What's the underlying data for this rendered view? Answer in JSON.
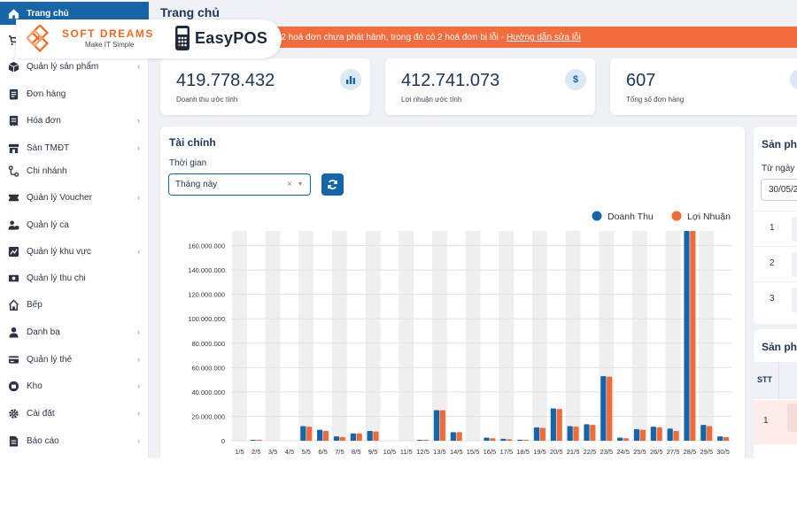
{
  "brand": {
    "softdreams_name": "SOFT DREAMS",
    "softdreams_tagline": "Make IT Simple",
    "easypos_name": "EasyPOS"
  },
  "sidebar": {
    "items": [
      {
        "label": "Trang chủ",
        "icon": "home-icon",
        "active": true,
        "chevron": false
      },
      {
        "label": "",
        "icon": "cart-icon",
        "active": false,
        "chevron": false
      },
      {
        "label": "Quản lý sản phẩm",
        "icon": "box-icon",
        "active": false,
        "chevron": true
      },
      {
        "label": "Đơn hàng",
        "icon": "order-icon",
        "active": false,
        "chevron": false
      },
      {
        "label": "Hóa đơn",
        "icon": "invoice-icon",
        "active": false,
        "chevron": true
      },
      {
        "label": "Sàn TMĐT",
        "icon": "store-icon",
        "active": false,
        "chevron": true
      },
      {
        "label": "Chi nhánh",
        "icon": "branch-icon",
        "active": false,
        "chevron": false
      },
      {
        "label": "Quản lý Voucher",
        "icon": "voucher-icon",
        "active": false,
        "chevron": true
      },
      {
        "label": "Quản lý ca",
        "icon": "shift-icon",
        "active": false,
        "chevron": false
      },
      {
        "label": "Quản lý khu vực",
        "icon": "area-icon",
        "active": false,
        "chevron": true
      },
      {
        "label": "Quản lý thu chi",
        "icon": "cash-icon",
        "active": false,
        "chevron": false
      },
      {
        "label": "Bếp",
        "icon": "kitchen-icon",
        "active": false,
        "chevron": false
      },
      {
        "label": "Danh bạ",
        "icon": "contacts-icon",
        "active": false,
        "chevron": true
      },
      {
        "label": "Quản lý thẻ",
        "icon": "card-icon",
        "active": false,
        "chevron": true
      },
      {
        "label": "Kho",
        "icon": "warehouse-icon",
        "active": false,
        "chevron": true
      },
      {
        "label": "Cài đặt",
        "icon": "gear-icon",
        "active": false,
        "chevron": true
      },
      {
        "label": "Báo cáo",
        "icon": "report-icon",
        "active": false,
        "chevron": true
      }
    ]
  },
  "header": {
    "title": "Trang chủ",
    "alert_text": "g 2 hoá đơn chưa phát hành, trong đó có 2 hoá đơn bị lỗi -",
    "alert_link": "Hướng dẫn sửa lỗi"
  },
  "stats": [
    {
      "value": "419.778.432",
      "label": "Doanh thu ước tính",
      "icon": "chart-icon"
    },
    {
      "value": "412.741.073",
      "label": "Lợi nhuận ước tính",
      "icon": "dollar-icon"
    },
    {
      "value": "607",
      "label": "Tổng số đơn hàng",
      "icon": "orders-count-icon"
    }
  ],
  "finance": {
    "title": "Tài chính",
    "time_label": "Thời gian",
    "time_value": "Tháng này",
    "clear_symbol": "×",
    "caret_symbol": "▾"
  },
  "right_panel": {
    "top_title": "Sản pha",
    "date_label": "Từ ngày",
    "date_value": "30/05/2",
    "rows": [
      "1",
      "2",
      "3"
    ],
    "bottom_title": "Sản pha",
    "table_header": "STT",
    "table_first_row": "1"
  },
  "colors": {
    "primary": "#1565a8",
    "accent": "#f26c3d",
    "series_revenue": "#1565a8",
    "series_profit": "#f06a3a"
  },
  "chart_data": {
    "type": "bar",
    "categories": [
      "1/5",
      "2/5",
      "3/5",
      "4/5",
      "5/5",
      "6/5",
      "7/5",
      "8/5",
      "9/5",
      "10/5",
      "11/5",
      "12/5",
      "13/5",
      "14/5",
      "15/5",
      "16/5",
      "17/5",
      "18/5",
      "19/5",
      "20/5",
      "21/5",
      "22/5",
      "23/5",
      "24/5",
      "25/5",
      "26/5",
      "27/5",
      "28/5",
      "29/5",
      "30/5"
    ],
    "series": [
      {
        "name": "Doanh Thu",
        "values": [
          0,
          500000,
          0,
          0,
          12000000,
          9000000,
          3500000,
          6000000,
          8000000,
          0,
          0,
          500000,
          25000000,
          7000000,
          0,
          2500000,
          1500000,
          800000,
          11000000,
          26500000,
          12000000,
          13500000,
          53000000,
          2500000,
          9500000,
          11500000,
          10000000,
          172000000,
          13000000,
          3500000
        ]
      },
      {
        "name": "Lợi Nhuận",
        "values": [
          0,
          500000,
          0,
          0,
          11500000,
          8000000,
          3000000,
          6000000,
          7500000,
          0,
          0,
          500000,
          25000000,
          7000000,
          0,
          2000000,
          1200000,
          700000,
          10500000,
          26000000,
          11500000,
          13000000,
          52500000,
          2000000,
          9000000,
          11000000,
          8000000,
          172000000,
          12000000,
          3000000
        ]
      }
    ],
    "y_ticks": [
      "0",
      "20.000.000",
      "40.000.000",
      "60.000.000",
      "80.000.000",
      "100.000.000",
      "120.000.000",
      "140.000.000",
      "160.000.000"
    ],
    "ylim": [
      0,
      172000000
    ],
    "legend_placement": "top-right",
    "grid": true
  }
}
